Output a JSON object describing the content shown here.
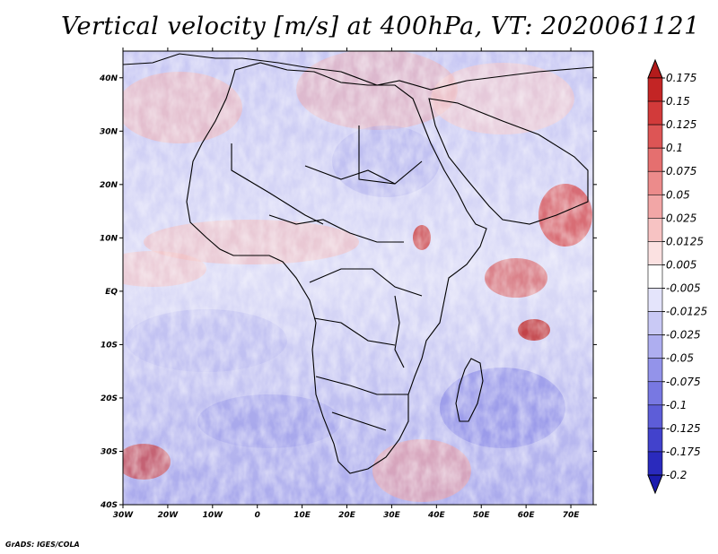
{
  "title": "Vertical velocity [m/s] at 400hPa, VT: 2020061121",
  "credit": "GrADS: IGES/COLA",
  "map": {
    "lat_labels": [
      "40N",
      "30N",
      "20N",
      "10N",
      "EQ",
      "10S",
      "20S",
      "30S",
      "40S"
    ],
    "lon_labels": [
      "30W",
      "20W",
      "10W",
      "0",
      "10E",
      "20E",
      "30E",
      "40E",
      "50E",
      "60E",
      "70E"
    ],
    "extent": {
      "lon_min": -30,
      "lon_max": 75,
      "lat_min": -40,
      "lat_max": 45
    }
  },
  "colorbar": {
    "levels": [
      "0.175",
      "0.15",
      "0.125",
      "0.1",
      "0.075",
      "0.05",
      "0.025",
      "0.0125",
      "0.005",
      "-0.005",
      "-0.0125",
      "-0.025",
      "-0.05",
      "-0.075",
      "-0.1",
      "-0.125",
      "-0.175",
      "-0.2"
    ],
    "colors": [
      "#b31b1b",
      "#c32525",
      "#d23a3a",
      "#dd5555",
      "#e56f6f",
      "#ec8b8b",
      "#f2a6a6",
      "#f7c3c3",
      "#fbe1e1",
      "#ffffff",
      "#e4e4fb",
      "#c9c9f5",
      "#aeaef0",
      "#9393ea",
      "#7878e2",
      "#5d5dd8",
      "#4242cc",
      "#2a2abd",
      "#1c1cae"
    ]
  }
}
